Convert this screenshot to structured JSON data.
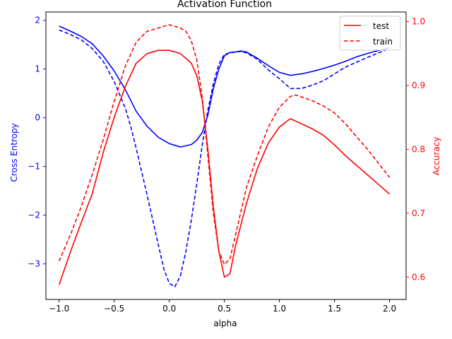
{
  "chart_data": {
    "type": "line",
    "title": "Activation Function",
    "xlabel": "alpha",
    "ylabel_left": "Cross Entropy",
    "ylabel_right": "Accuracy",
    "xlim": [
      -1.12,
      2.15
    ],
    "ylim_left": [
      -3.73,
      2.17
    ],
    "ylim_right": [
      0.565,
      1.015
    ],
    "x_ticks": [
      -1.0,
      -0.5,
      0.0,
      0.5,
      1.0,
      1.5,
      2.0
    ],
    "x_tick_labels": [
      "−1.0",
      "−0.5",
      "0.0",
      "0.5",
      "1.0",
      "1.5",
      "2.0"
    ],
    "y_left_ticks": [
      -3,
      -2,
      -1,
      0,
      1,
      2
    ],
    "y_left_tick_labels": [
      "−3",
      "−2",
      "−1",
      "0",
      "1",
      "2"
    ],
    "y_right_ticks": [
      0.6,
      0.7,
      0.8,
      0.9,
      1.0
    ],
    "y_right_tick_labels": [
      "0.6",
      "0.7",
      "0.8",
      "0.9",
      "1.0"
    ],
    "colors": {
      "left_axis": "#0000ff",
      "right_axis": "#ff0000",
      "frame": "#000000"
    },
    "legend": {
      "placement": "top-right",
      "entries": [
        {
          "label": "test",
          "style": "solid",
          "color": "#ff0000"
        },
        {
          "label": "train",
          "style": "dashed",
          "color": "#ff0000"
        }
      ]
    },
    "grid": false,
    "series": [
      {
        "axis": "left",
        "color": "#0000ff",
        "dash": false,
        "x": [
          -1.0,
          -0.9,
          -0.8,
          -0.7,
          -0.6,
          -0.5,
          -0.4,
          -0.3,
          -0.2,
          -0.1,
          0.0,
          0.1,
          0.2,
          0.25,
          0.3,
          0.35,
          0.4,
          0.45,
          0.5,
          0.55,
          0.6,
          0.65,
          0.7,
          0.8,
          0.9,
          1.0,
          1.1,
          1.2,
          1.3,
          1.4,
          1.5,
          1.6,
          1.7,
          1.8,
          1.9,
          2.0
        ],
        "y": [
          1.88,
          1.78,
          1.67,
          1.52,
          1.27,
          0.96,
          0.58,
          0.13,
          -0.18,
          -0.4,
          -0.53,
          -0.6,
          -0.55,
          -0.46,
          -0.3,
          0.05,
          0.6,
          1.0,
          1.27,
          1.34,
          1.35,
          1.37,
          1.35,
          1.22,
          1.07,
          0.93,
          0.87,
          0.9,
          0.95,
          1.01,
          1.08,
          1.16,
          1.25,
          1.32,
          1.38,
          1.44
        ]
      },
      {
        "axis": "left",
        "color": "#0000ff",
        "dash": true,
        "x": [
          -1.0,
          -0.9,
          -0.8,
          -0.7,
          -0.6,
          -0.5,
          -0.4,
          -0.35,
          -0.3,
          -0.2,
          -0.1,
          -0.05,
          0.0,
          0.05,
          0.1,
          0.15,
          0.2,
          0.25,
          0.3,
          0.35,
          0.4,
          0.45,
          0.5,
          0.55,
          0.6,
          0.65,
          0.7,
          0.8,
          0.9,
          1.0,
          1.1,
          1.2,
          1.3,
          1.4,
          1.5,
          1.6,
          1.7,
          1.8,
          1.9,
          2.0
        ],
        "y": [
          1.8,
          1.71,
          1.6,
          1.42,
          1.16,
          0.74,
          0.2,
          -0.18,
          -0.63,
          -1.6,
          -2.6,
          -3.1,
          -3.4,
          -3.47,
          -3.25,
          -2.75,
          -2.1,
          -1.35,
          -0.55,
          0.15,
          0.7,
          1.1,
          1.3,
          1.33,
          1.35,
          1.36,
          1.33,
          1.2,
          0.98,
          0.8,
          0.6,
          0.6,
          0.67,
          0.76,
          0.9,
          1.04,
          1.14,
          1.24,
          1.33,
          1.42
        ]
      },
      {
        "axis": "right",
        "color": "#ff0000",
        "dash": false,
        "x": [
          -1.0,
          -0.9,
          -0.8,
          -0.7,
          -0.6,
          -0.5,
          -0.4,
          -0.3,
          -0.2,
          -0.1,
          0.0,
          0.1,
          0.2,
          0.25,
          0.3,
          0.35,
          0.4,
          0.45,
          0.5,
          0.55,
          0.6,
          0.7,
          0.8,
          0.9,
          1.0,
          1.1,
          1.2,
          1.3,
          1.4,
          1.5,
          1.6,
          1.7,
          1.8,
          1.9,
          2.0
        ],
        "y": [
          0.588,
          0.638,
          0.685,
          0.73,
          0.795,
          0.85,
          0.898,
          0.935,
          0.95,
          0.955,
          0.955,
          0.95,
          0.935,
          0.915,
          0.875,
          0.8,
          0.71,
          0.64,
          0.6,
          0.605,
          0.648,
          0.715,
          0.77,
          0.81,
          0.835,
          0.848,
          0.84,
          0.832,
          0.822,
          0.807,
          0.79,
          0.775,
          0.76,
          0.745,
          0.73
        ]
      },
      {
        "axis": "right",
        "color": "#ff0000",
        "dash": true,
        "x": [
          -1.0,
          -0.9,
          -0.8,
          -0.7,
          -0.6,
          -0.5,
          -0.4,
          -0.3,
          -0.2,
          -0.1,
          0.0,
          0.1,
          0.15,
          0.2,
          0.25,
          0.3,
          0.35,
          0.4,
          0.45,
          0.5,
          0.55,
          0.6,
          0.7,
          0.8,
          0.9,
          1.0,
          1.1,
          1.15,
          1.2,
          1.3,
          1.4,
          1.5,
          1.6,
          1.7,
          1.8,
          1.9,
          2.0
        ],
        "y": [
          0.625,
          0.665,
          0.71,
          0.76,
          0.815,
          0.875,
          0.93,
          0.968,
          0.985,
          0.99,
          0.995,
          0.99,
          0.985,
          0.97,
          0.94,
          0.88,
          0.79,
          0.7,
          0.64,
          0.62,
          0.628,
          0.665,
          0.74,
          0.79,
          0.835,
          0.866,
          0.883,
          0.885,
          0.882,
          0.876,
          0.868,
          0.857,
          0.84,
          0.82,
          0.8,
          0.778,
          0.756
        ]
      }
    ]
  }
}
